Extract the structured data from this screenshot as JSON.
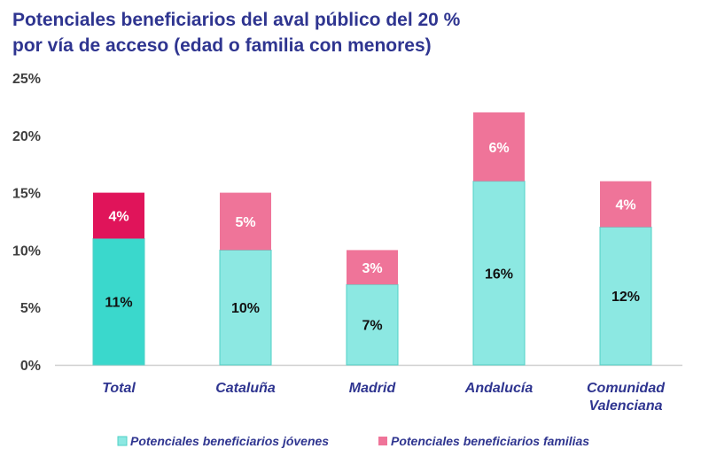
{
  "chart_data": {
    "type": "bar",
    "stacked": true,
    "title": [
      "Potenciales beneficiarios del aval público del 20 %",
      "por vía de acceso (edad o familia con menores)"
    ],
    "categories": [
      [
        "Total"
      ],
      [
        "Cataluña"
      ],
      [
        "Madrid"
      ],
      [
        "Andalucía"
      ],
      [
        "Comunidad",
        "Valenciana"
      ]
    ],
    "series": [
      {
        "name": "Potenciales beneficiarios jóvenes",
        "values": [
          11,
          10,
          7,
          16,
          12
        ],
        "labels": [
          "11%",
          "10%",
          "7%",
          "16%",
          "12%"
        ],
        "color": "#8ce8e2",
        "highlight_color": "#3ad8cc"
      },
      {
        "name": "Potenciales beneficiarios familias",
        "values": [
          4,
          5,
          3,
          6,
          4
        ],
        "labels": [
          "4%",
          "5%",
          "3%",
          "6%",
          "4%"
        ],
        "color": "#ef7499",
        "highlight_color": "#e0145a"
      }
    ],
    "yticks": [
      "0%",
      "5%",
      "10%",
      "15%",
      "20%",
      "25%"
    ],
    "ylim": [
      0,
      25
    ],
    "grid": false,
    "legend": "bottom"
  }
}
